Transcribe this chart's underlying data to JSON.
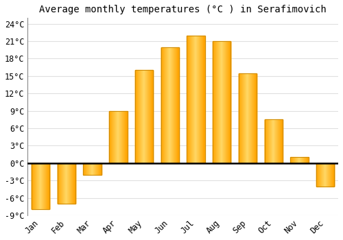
{
  "months": [
    "Jan",
    "Feb",
    "Mar",
    "Apr",
    "May",
    "Jun",
    "Jul",
    "Aug",
    "Sep",
    "Oct",
    "Nov",
    "Dec"
  ],
  "values": [
    -8,
    -7,
    -2,
    9,
    16,
    20,
    22,
    21,
    15.5,
    7.5,
    1,
    -4
  ],
  "bar_color_light": "#FFD966",
  "bar_color_dark": "#FFA500",
  "bar_edge_color": "#CC8800",
  "title": "Average monthly temperatures (°C ) in Serafimovich",
  "ylim": [
    -9,
    25
  ],
  "yticks": [
    -9,
    -6,
    -3,
    0,
    3,
    6,
    9,
    12,
    15,
    18,
    21,
    24
  ],
  "ytick_labels": [
    "-9°C",
    "-6°C",
    "-3°C",
    "0°C",
    "3°C",
    "6°C",
    "9°C",
    "12°C",
    "15°C",
    "18°C",
    "21°C",
    "24°C"
  ],
  "background_color": "#ffffff",
  "grid_color": "#e0e0e0",
  "title_fontsize": 10,
  "tick_fontsize": 8.5
}
